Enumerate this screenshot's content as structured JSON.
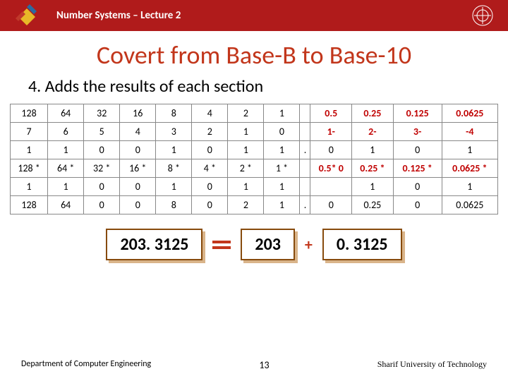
{
  "header": {
    "text": "Number Systems – Lecture 2"
  },
  "title": "Covert from Base-B to Base-10",
  "step": "4.  Adds the results of each section",
  "table": {
    "rows": [
      {
        "cells": [
          "128",
          "64",
          "32",
          "16",
          "8",
          "4",
          "2",
          "1",
          "",
          "0.5",
          "0.25",
          "0.125",
          "0.0625"
        ],
        "red_from": 9
      },
      {
        "cells": [
          "7",
          "6",
          "5",
          "4",
          "3",
          "2",
          "1",
          "0",
          "",
          "1-",
          "2-",
          "3-",
          "-4"
        ],
        "red_from": 9
      },
      {
        "cells": [
          "1",
          "1",
          "0",
          "0",
          "1",
          "0",
          "1",
          "1",
          ".",
          "0",
          "1",
          "0",
          "1"
        ]
      },
      {
        "cells": [
          "128 *",
          "64 *",
          "32 *",
          "16 *",
          "8 *",
          "4 *",
          "2 *",
          "1 *",
          "",
          "0.5* 0",
          "0.25 *",
          "0.125 *",
          "0.0625 *"
        ],
        "red_from": 9
      },
      {
        "cells": [
          "1",
          "1",
          "0",
          "0",
          "1",
          "0",
          "1",
          "1",
          "",
          "",
          "1",
          "0",
          "1"
        ]
      },
      {
        "cells": [
          "128",
          "64",
          "0",
          "0",
          "8",
          "0",
          "2",
          "1",
          ".",
          "0",
          "0.25",
          "0",
          "0.0625"
        ]
      }
    ]
  },
  "equation": {
    "result": "203. 3125",
    "intPart": "203",
    "plus": "+",
    "fracPart": "0. 3125"
  },
  "footer": {
    "left": "Department of Computer Engineering",
    "page": "13",
    "right": "Sharif University of Technology"
  }
}
